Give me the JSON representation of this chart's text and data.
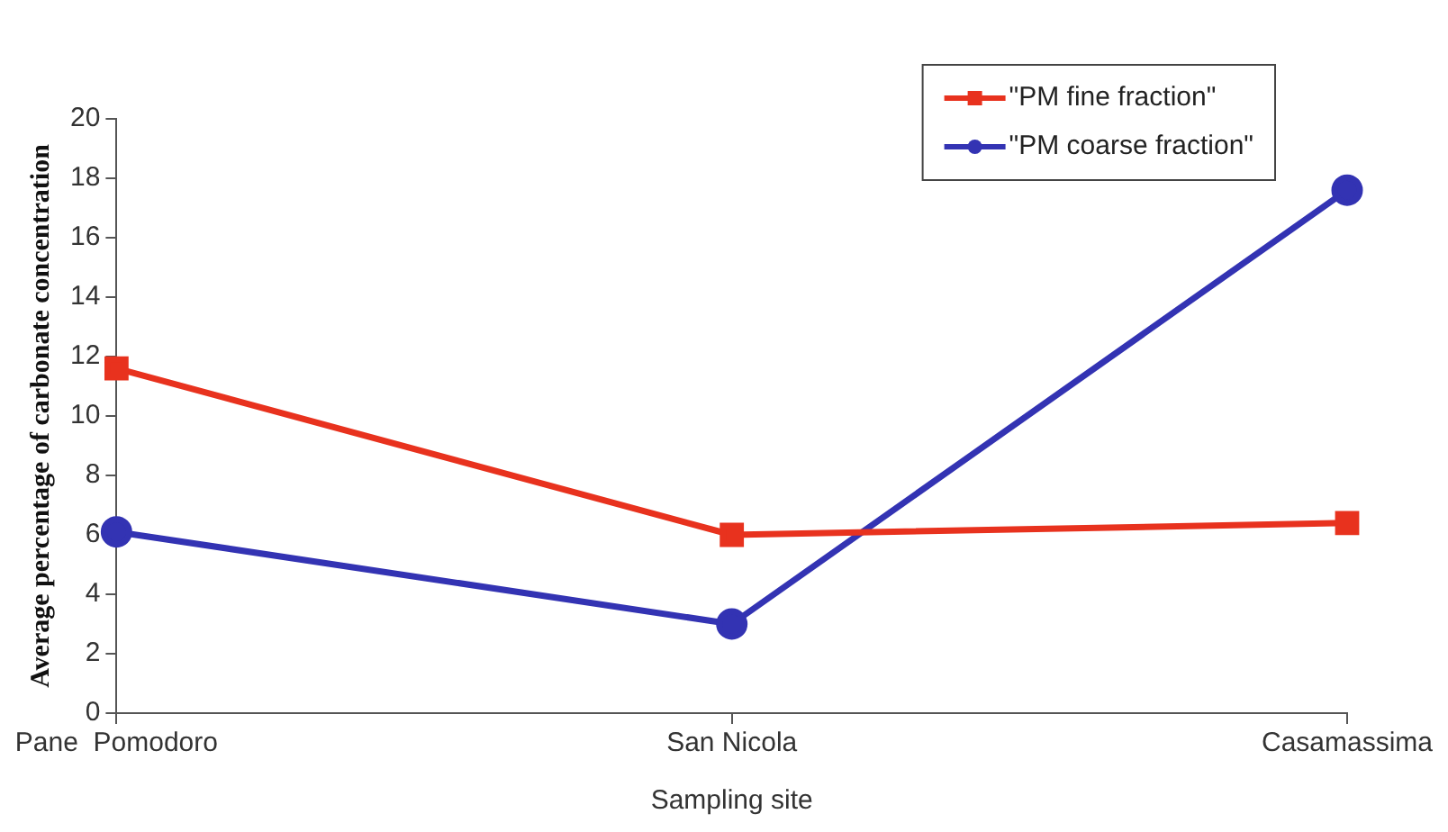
{
  "chart_data": {
    "type": "line",
    "xlabel": "Sampling site",
    "ylabel": "Average percentage of carbonate concentration",
    "categories": [
      "Pane  Pomodoro",
      "San Nicola",
      "Casamassima"
    ],
    "series": [
      {
        "name": "\"PM fine fraction\"",
        "color": "#e8321e",
        "marker": "square",
        "values": [
          11.6,
          6.0,
          6.4
        ]
      },
      {
        "name": "\"PM coarse fraction\"",
        "color": "#3333b3",
        "marker": "circle",
        "values": [
          6.1,
          3.0,
          17.6
        ]
      }
    ],
    "ylim": [
      0,
      20
    ],
    "yticks": [
      0,
      2,
      4,
      6,
      8,
      10,
      12,
      14,
      16,
      18,
      20
    ],
    "grid": false,
    "legend": "top right",
    "line_style": "solid"
  }
}
